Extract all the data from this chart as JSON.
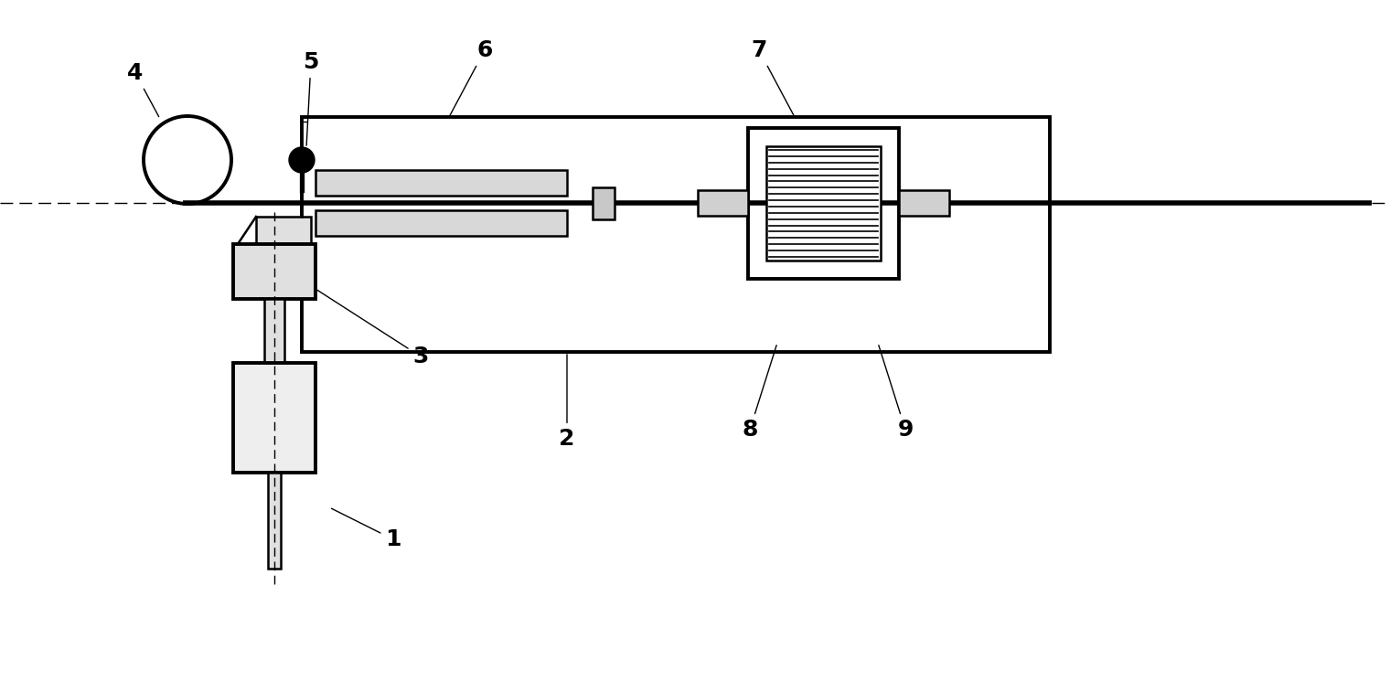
{
  "bg_color": "#ffffff",
  "line_color": "#000000",
  "fig_width": 15.2,
  "fig_height": 7.57,
  "lw_thick": 2.8,
  "lw_medium": 1.8,
  "lw_thin": 1.0
}
